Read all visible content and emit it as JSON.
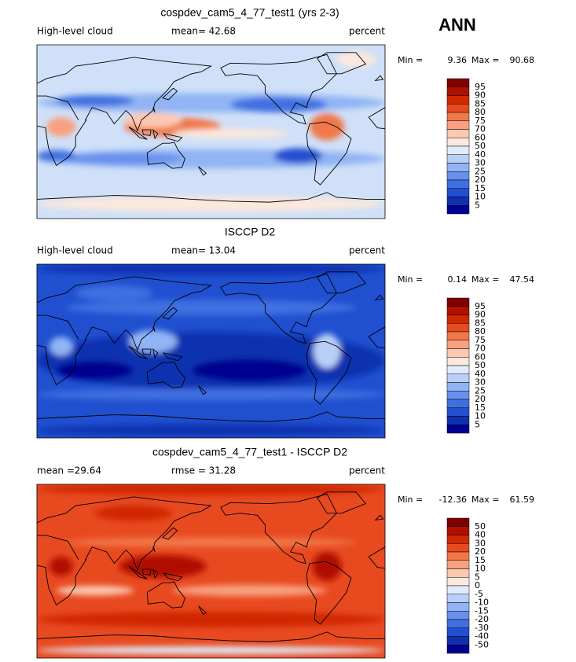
{
  "title": "ANN",
  "colorbar_colors": [
    "#800000",
    "#b01000",
    "#d02800",
    "#e84a20",
    "#f07848",
    "#f8a080",
    "#fcc8b0",
    "#fce8dc",
    "#e0ecfc",
    "#b8d0f8",
    "#90b4f4",
    "#6890ec",
    "#4070e0",
    "#2050d0",
    "#1030b0",
    "#000090"
  ],
  "panels": [
    {
      "title": "cospdev_cam5_4_77_test1 (yrs 2-3)",
      "left_label": "High-level cloud",
      "stats": [
        {
          "label": "mean=",
          "value": 42.68
        }
      ],
      "units": "percent",
      "range": [
        {
          "label": "Min =",
          "value": 9.36
        },
        {
          "label": "Max =",
          "value": 90.68
        }
      ],
      "levels": [
        95,
        90,
        85,
        80,
        75,
        70,
        60,
        50,
        40,
        30,
        25,
        20,
        15,
        10,
        5
      ]
    },
    {
      "title": "ISCCP D2",
      "left_label": "High-level cloud",
      "stats": [
        {
          "label": "mean=",
          "value": 13.04
        }
      ],
      "units": "percent",
      "range": [
        {
          "label": "Min =",
          "value": 0.14
        },
        {
          "label": "Max =",
          "value": 47.54
        }
      ],
      "levels": [
        95,
        90,
        85,
        80,
        75,
        70,
        60,
        50,
        40,
        30,
        25,
        20,
        15,
        10,
        5
      ]
    },
    {
      "title": "cospdev_cam5_4_77_test1 - ISCCP D2",
      "stats": [
        {
          "label": "mean =",
          "value": 29.64
        },
        {
          "label": "rmse =",
          "value": 31.28
        }
      ],
      "units": "percent",
      "range": [
        {
          "label": "Min =",
          "value": -12.36
        },
        {
          "label": "Max =",
          "value": 61.59
        }
      ],
      "levels": [
        50,
        40,
        30,
        20,
        15,
        10,
        5,
        0,
        -5,
        -10,
        -15,
        -20,
        -30,
        -40,
        -50
      ]
    }
  ]
}
